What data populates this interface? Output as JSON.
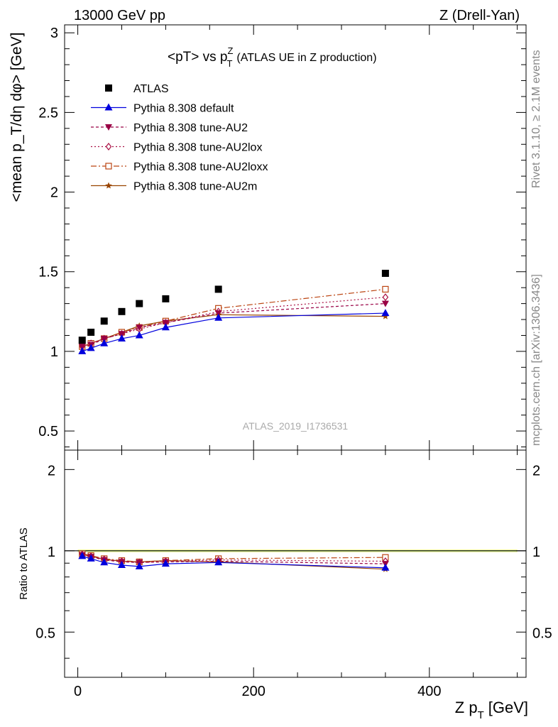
{
  "header": {
    "left": "13000 GeV pp",
    "right": "Z (Drell-Yan)"
  },
  "side_text": {
    "rivet": "Rivet 3.1.10, ≥ 2.1M events",
    "mcplots": "mcplots.cern.ch [arXiv:1306.3436]"
  },
  "chart_data": {
    "type": "scatter",
    "title": {
      "main": "<pT> vs p",
      "sup": "Z",
      "sub": "T",
      "extra": "(ATLAS UE in Z production)"
    },
    "analysis_label": "ATLAS_2019_I1736531",
    "xlabel": {
      "main": "Z p",
      "sub": "T",
      "unit": "[GeV]"
    },
    "ylabel": "<mean p_T/dη dφ> [GeV]",
    "ratio_ylabel": "Ratio to ATLAS",
    "xlim": [
      -15,
      510
    ],
    "ylim": [
      0.38,
      3.05
    ],
    "ratio_ylim": [
      0.34,
      2.36
    ],
    "x_ticks": [
      0,
      200,
      400
    ],
    "y_ticks": [
      0.5,
      1,
      1.5,
      2,
      2.5,
      3
    ],
    "y_tick_labels": [
      "0.5",
      "1",
      "1.5",
      "2",
      "2.5",
      "3"
    ],
    "ratio_ticks": [
      0.5,
      1,
      2
    ],
    "ratio_tick_labels": [
      "0.5",
      "1",
      "2"
    ],
    "x": [
      5,
      15,
      30,
      50,
      70,
      100,
      160,
      350
    ],
    "series": [
      {
        "name": "ATLAS",
        "color": "#000000",
        "marker": "square",
        "values": [
          1.07,
          1.12,
          1.19,
          1.25,
          1.3,
          1.33,
          1.39,
          1.49
        ],
        "ratio": [
          1,
          1,
          1,
          1,
          1,
          1,
          1,
          1
        ]
      },
      {
        "name": "Pythia 8.308 default",
        "color": "#0000dd",
        "marker": "triangle",
        "dash": "",
        "values": [
          1.0,
          1.02,
          1.05,
          1.08,
          1.1,
          1.15,
          1.21,
          1.24
        ],
        "ratio": [
          0.955,
          0.935,
          0.905,
          0.885,
          0.875,
          0.895,
          0.905,
          0.865
        ]
      },
      {
        "name": "Pythia 8.308 tune-AU2",
        "color": "#990044",
        "marker": "triangle-down",
        "dash": "4,3",
        "values": [
          1.03,
          1.04,
          1.08,
          1.11,
          1.15,
          1.18,
          1.24,
          1.3
        ],
        "ratio": [
          0.965,
          0.95,
          0.925,
          0.91,
          0.905,
          0.91,
          0.915,
          0.895
        ]
      },
      {
        "name": "Pythia 8.308 tune-AU2lox",
        "color": "#aa1144",
        "marker": "diamond",
        "dash": "2,3",
        "values": [
          1.03,
          1.05,
          1.08,
          1.11,
          1.14,
          1.18,
          1.25,
          1.34
        ],
        "ratio": [
          0.97,
          0.955,
          0.93,
          0.915,
          0.905,
          0.915,
          0.925,
          0.915
        ]
      },
      {
        "name": "Pythia 8.308 tune-AU2loxx",
        "color": "#bb4411",
        "marker": "square-open",
        "dash": "8,3,2,3",
        "values": [
          1.03,
          1.05,
          1.08,
          1.12,
          1.15,
          1.19,
          1.27,
          1.39
        ],
        "ratio": [
          0.975,
          0.96,
          0.935,
          0.92,
          0.91,
          0.92,
          0.935,
          0.945
        ]
      },
      {
        "name": "Pythia 8.308 tune-AU2m",
        "color": "#994400",
        "marker": "star",
        "dash": "",
        "values": [
          1.03,
          1.05,
          1.08,
          1.12,
          1.16,
          1.19,
          1.23,
          1.22
        ],
        "ratio": [
          0.97,
          0.955,
          0.93,
          0.915,
          0.91,
          0.92,
          0.91,
          0.855
        ]
      }
    ]
  }
}
